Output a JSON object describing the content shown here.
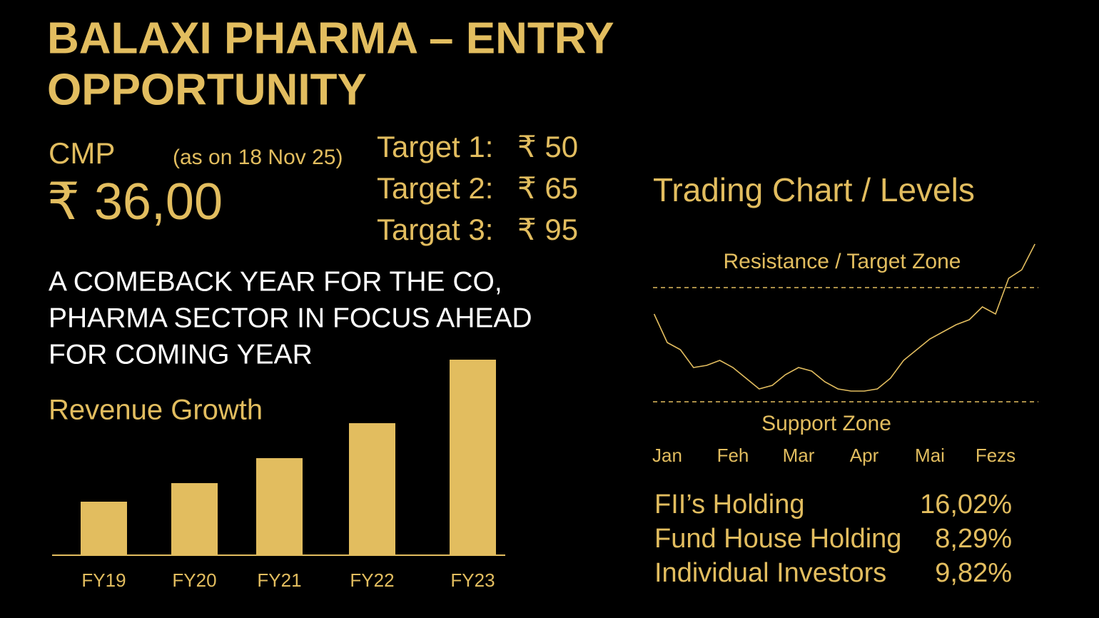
{
  "header": {
    "title_lines": [
      "BALAXI PHARMA – ENTRY",
      "OPPORTUNITY"
    ],
    "cmp_label": "CMP",
    "as_on": "(as on 18 Nov 25)",
    "price": "₹ 36,00",
    "targets": [
      {
        "label": "Target 1:",
        "value": "₹ 50"
      },
      {
        "label": "Target 2:",
        "value": "₹ 65"
      },
      {
        "label": "Targat 3:",
        "value": "₹ 95"
      }
    ],
    "headline_lines": [
      "A COMEBACK YEAR FOR THE CO,",
      "PHARMA SECTOR IN FOCUS AHEAD",
      "FOR COMING YEAR"
    ]
  },
  "chart_data": [
    {
      "type": "bar",
      "title": "Revenue Growth",
      "color": "#e2bd5f",
      "categories": [
        "FY19",
        "FY20",
        "FY21",
        "FY22",
        "FY23"
      ],
      "values": [
        75,
        101,
        136,
        185,
        274
      ]
    },
    {
      "type": "line",
      "title": "Trading Chart  /  Levels",
      "color": "#e2bd5f",
      "categories": [
        null,
        "Jan",
        null,
        null,
        null,
        null,
        "Feh",
        null,
        null,
        null,
        null,
        "Mar",
        null,
        null,
        null,
        null,
        "Apr",
        null,
        null,
        null,
        null,
        "Mai",
        null,
        null,
        null,
        null,
        "Fezs",
        null,
        null,
        null
      ],
      "values": [
        60.75,
        50.75,
        48.25,
        42,
        42.75,
        44.5,
        42,
        38.25,
        34.5,
        35.75,
        39.5,
        42,
        40.75,
        37,
        34.5,
        33.75,
        33.75,
        34.5,
        38.25,
        44.5,
        48.25,
        52,
        54.5,
        57,
        58.75,
        63.25,
        60.75,
        73.25,
        76.25,
        85.25
      ],
      "resistance": {
        "label": "Resistance / Target Zone",
        "value": 70
      },
      "support": {
        "label": "Support Zone",
        "value": 30
      }
    }
  ],
  "holdings": [
    {
      "label": "FII’s Holding",
      "value": "16,02%"
    },
    {
      "label": "Fund House Holding",
      "value": "8,29%"
    },
    {
      "label": "Individual Investors",
      "value": "9,82%"
    }
  ]
}
